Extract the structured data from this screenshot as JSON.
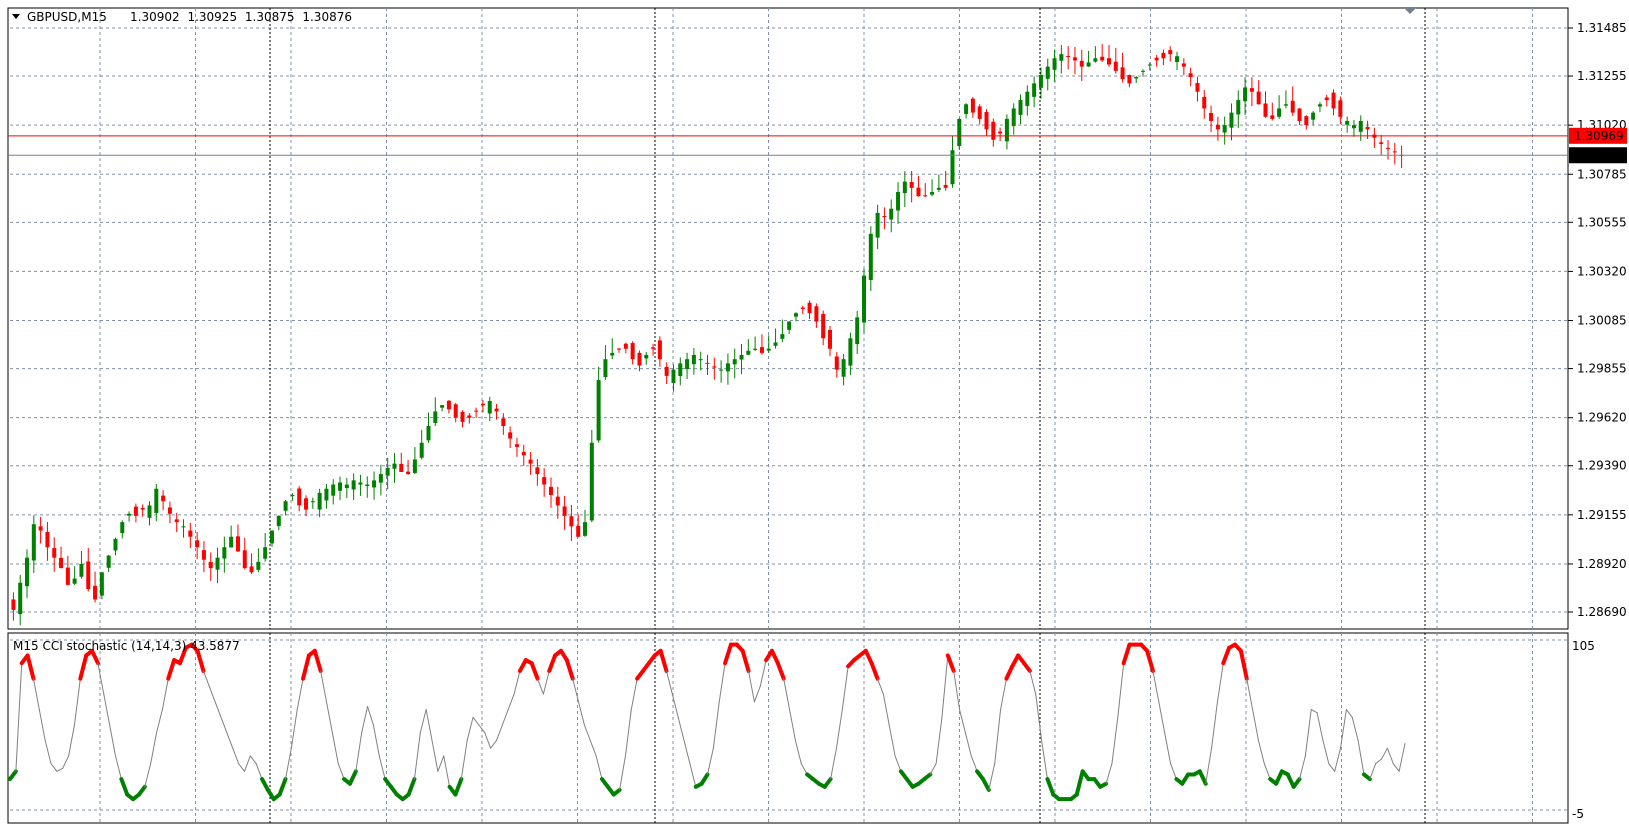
{
  "chart": {
    "symbol": "GBPUSD,M15",
    "ohlc": [
      "1.30902",
      "1.30925",
      "1.30875",
      "1.30876"
    ],
    "bid_line_price": "1.30876",
    "ask_line_price": "1.30969",
    "price_axis_labels": [
      "1.31485",
      "1.31255",
      "1.31020",
      "1.30785",
      "1.30555",
      "1.30320",
      "1.30085",
      "1.29855",
      "1.29620",
      "1.29390",
      "1.29155",
      "1.28920",
      "1.28690"
    ]
  },
  "indicator": {
    "label": "M15 CCI stochastic (14,14,3) 43.5877",
    "axis_labels": [
      "105",
      "-5"
    ]
  },
  "chart_data": [
    {
      "type": "candlestick",
      "title": "GBPUSD,M15",
      "ylim": [
        1.2869,
        1.31485
      ],
      "close_series": [
        1.287,
        1.2883,
        1.2895,
        1.2911,
        1.2908,
        1.29,
        1.2895,
        1.289,
        1.2882,
        1.2885,
        1.2892,
        1.288,
        1.2875,
        1.2888,
        1.2896,
        1.2904,
        1.2912,
        1.2916,
        1.2915,
        1.2918,
        1.292,
        1.2928,
        1.2922,
        1.2916,
        1.2912,
        1.291,
        1.2905,
        1.29,
        1.2894,
        1.289,
        1.2895,
        1.29,
        1.2905,
        1.2898,
        1.289,
        1.2888,
        1.2893,
        1.29,
        1.2908,
        1.2915,
        1.2922,
        1.2925,
        1.292,
        1.2918,
        1.2922,
        1.2926,
        1.2928,
        1.293,
        1.2931,
        1.293,
        1.2932,
        1.2931,
        1.293,
        1.2932,
        1.2935,
        1.2938,
        1.294,
        1.2936,
        1.2935,
        1.2942,
        1.295,
        1.2958,
        1.2965,
        1.2968,
        1.2966,
        1.2962,
        1.296,
        1.2962,
        1.2965,
        1.2968,
        1.297,
        1.2965,
        1.2958,
        1.2952,
        1.2948,
        1.2944,
        1.294,
        1.2935,
        1.293,
        1.2925,
        1.292,
        1.2915,
        1.291,
        1.2905,
        1.2912,
        1.295,
        1.298,
        1.299,
        1.2993,
        1.2995,
        1.2995,
        1.299,
        1.2987,
        1.2992,
        1.2995,
        1.299,
        1.2982,
        1.2985,
        1.2988,
        1.299,
        1.2992,
        1.299,
        1.2988,
        1.2986,
        1.2985,
        1.2988,
        1.299,
        1.2992,
        1.2994,
        1.2995,
        1.2993,
        1.2995,
        1.2998,
        1.3002,
        1.3008,
        1.3012,
        1.3014,
        1.3012,
        1.3008,
        1.3,
        1.2995,
        1.2985,
        1.299,
        1.3,
        1.301,
        1.303,
        1.305,
        1.306,
        1.3058,
        1.3062,
        1.307,
        1.3075,
        1.3072,
        1.3068,
        1.3068,
        1.307,
        1.3072,
        1.3072,
        1.309,
        1.3105,
        1.3112,
        1.3108,
        1.3105,
        1.31,
        1.3095,
        1.3098,
        1.3105,
        1.311,
        1.3114,
        1.3118,
        1.3122,
        1.3126,
        1.313,
        1.3134,
        1.3136,
        1.3135,
        1.3133,
        1.313,
        1.3132,
        1.3134,
        1.3133,
        1.3131,
        1.3128,
        1.3124,
        1.3122,
        1.3125,
        1.3128,
        1.3131,
        1.3133,
        1.3134,
        1.3136,
        1.3135,
        1.313,
        1.3125,
        1.3118,
        1.311,
        1.3104,
        1.31,
        1.3102,
        1.3108,
        1.3114,
        1.312,
        1.3118,
        1.3112,
        1.3106,
        1.3105,
        1.311,
        1.3112,
        1.3108,
        1.3104,
        1.3102,
        1.3108,
        1.3112,
        1.3114,
        1.311,
        1.3106,
        1.3104,
        1.3102,
        1.3104,
        1.31,
        1.3096,
        1.3093,
        1.3091,
        1.3089,
        1.30876
      ]
    },
    {
      "type": "line",
      "title": "M15 CCI stochastic (14,14,3) 43.5877",
      "ylim": [
        -5,
        105
      ],
      "threshold_high": 80,
      "threshold_low": 20,
      "colors": {
        "high": "#ff0000",
        "low": "#008000",
        "mid": "#808080"
      },
      "values": [
        15,
        20,
        90,
        95,
        80,
        60,
        40,
        25,
        20,
        22,
        30,
        50,
        80,
        95,
        98,
        90,
        70,
        50,
        30,
        15,
        5,
        2,
        5,
        10,
        25,
        45,
        60,
        80,
        92,
        90,
        100,
        102,
        98,
        85,
        75,
        65,
        55,
        45,
        35,
        25,
        20,
        30,
        25,
        15,
        8,
        2,
        5,
        15,
        35,
        60,
        80,
        95,
        98,
        85,
        65,
        45,
        25,
        15,
        12,
        20,
        45,
        62,
        50,
        30,
        15,
        10,
        5,
        2,
        5,
        15,
        45,
        60,
        40,
        20,
        30,
        10,
        5,
        15,
        40,
        55,
        50,
        45,
        35,
        40,
        50,
        60,
        70,
        85,
        92,
        90,
        80,
        70,
        85,
        95,
        98,
        92,
        80,
        65,
        50,
        40,
        30,
        15,
        10,
        5,
        8,
        30,
        60,
        80,
        85,
        90,
        95,
        98,
        85,
        70,
        55,
        40,
        25,
        10,
        12,
        18,
        35,
        65,
        90,
        102,
        102,
        98,
        85,
        65,
        75,
        92,
        98,
        90,
        80,
        60,
        40,
        25,
        18,
        15,
        12,
        10,
        15,
        35,
        60,
        88,
        92,
        95,
        98,
        90,
        80,
        70,
        50,
        30,
        20,
        15,
        10,
        12,
        15,
        18,
        25,
        55,
        95,
        85,
        60,
        45,
        30,
        20,
        15,
        8,
        25,
        60,
        80,
        88,
        95,
        90,
        85,
        70,
        40,
        15,
        5,
        2,
        2,
        2,
        5,
        20,
        15,
        15,
        10,
        12,
        25,
        55,
        90,
        102,
        102,
        102,
        98,
        85,
        65,
        45,
        25,
        15,
        12,
        18,
        18,
        20,
        12,
        35,
        65,
        90,
        100,
        102,
        98,
        80,
        60,
        40,
        25,
        15,
        12,
        20,
        18,
        10,
        15,
        30,
        60,
        58,
        40,
        25,
        20,
        35,
        60,
        55,
        40,
        18,
        15,
        25,
        28,
        35,
        25,
        20,
        38
      ]
    }
  ]
}
